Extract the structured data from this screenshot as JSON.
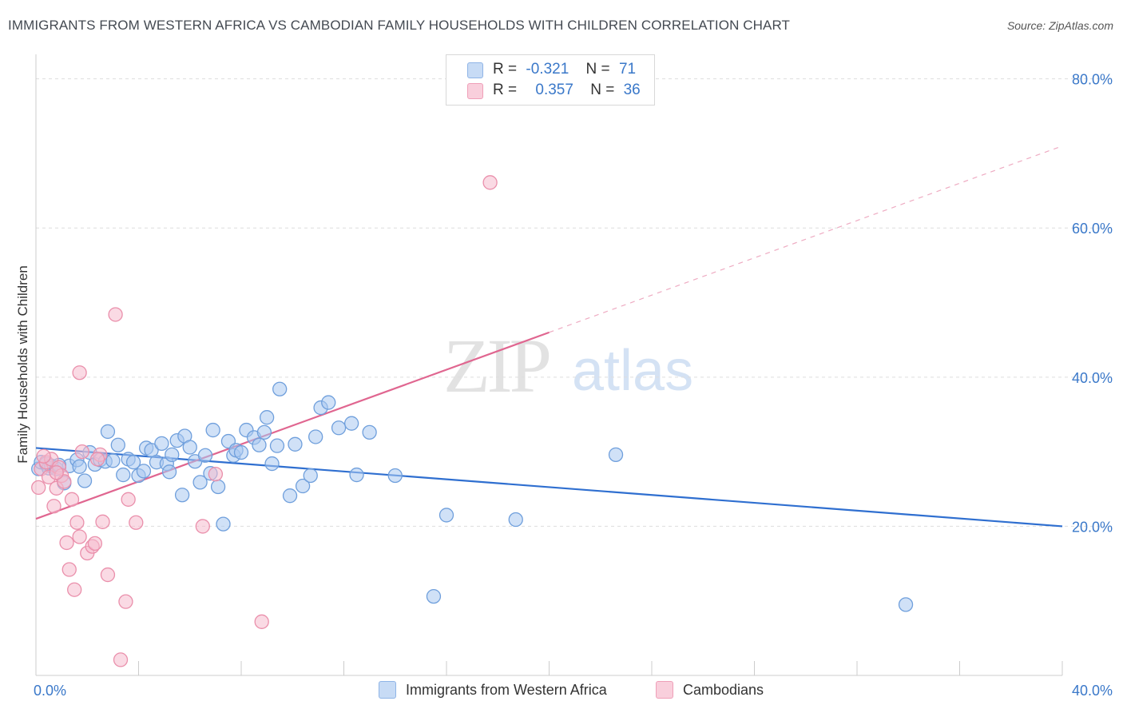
{
  "header": {
    "title": "IMMIGRANTS FROM WESTERN AFRICA VS CAMBODIAN FAMILY HOUSEHOLDS WITH CHILDREN CORRELATION CHART",
    "source": "Source: ZipAtlas.com"
  },
  "legend_top": {
    "rows": [
      {
        "r_label": "R =",
        "r_value": "-0.321",
        "n_label": "N =",
        "n_value": "71"
      },
      {
        "r_label": "R =",
        "r_value": "0.357",
        "n_label": "N =",
        "n_value": "36"
      }
    ]
  },
  "legend_bottom": {
    "items": [
      "Immigrants from Western Africa",
      "Cambodians"
    ]
  },
  "watermark": {
    "zip": "ZIP",
    "atlas": "atlas"
  },
  "colors": {
    "blue_fill": "#aac8f0",
    "blue_stroke": "#6f9fdc",
    "blue_line": "#2f6fd0",
    "pink_fill": "#f6bccd",
    "pink_stroke": "#ea8fab",
    "pink_line": "#e06690",
    "tick_text": "#3a78c9",
    "grid": "#dddddd"
  },
  "chart_data": {
    "type": "scatter",
    "title": "IMMIGRANTS FROM WESTERN AFRICA VS CAMBODIAN FAMILY HOUSEHOLDS WITH CHILDREN CORRELATION CHART",
    "xlabel": "",
    "ylabel": "Family Households with Children",
    "xlim": [
      0,
      40
    ],
    "ylim": [
      0,
      82
    ],
    "x_tick_labels": [
      "0.0%",
      "40.0%"
    ],
    "y_ticks": [
      20,
      40,
      60,
      80
    ],
    "y_tick_labels": [
      "20.0%",
      "40.0%",
      "60.0%",
      "80.0%"
    ],
    "grid": true,
    "legend_placement": "top-center",
    "series": [
      {
        "name": "Immigrants from Western Africa",
        "color": "#aac8f0",
        "points": [
          [
            0.1,
            27.7
          ],
          [
            0.2,
            28.6
          ],
          [
            0.4,
            28.4
          ],
          [
            0.5,
            27.8
          ],
          [
            0.6,
            28.1
          ],
          [
            0.8,
            27.7
          ],
          [
            1.1,
            25.8
          ],
          [
            1.3,
            28.1
          ],
          [
            1.6,
            28.9
          ],
          [
            1.7,
            28.0
          ],
          [
            1.9,
            26.1
          ],
          [
            2.1,
            29.9
          ],
          [
            2.3,
            28.3
          ],
          [
            2.5,
            28.9
          ],
          [
            2.7,
            28.7
          ],
          [
            2.8,
            32.7
          ],
          [
            3.0,
            28.8
          ],
          [
            3.2,
            30.9
          ],
          [
            3.4,
            26.9
          ],
          [
            3.6,
            29.0
          ],
          [
            3.8,
            28.6
          ],
          [
            4.0,
            26.8
          ],
          [
            4.2,
            27.4
          ],
          [
            4.3,
            30.5
          ],
          [
            4.5,
            30.2
          ],
          [
            4.7,
            28.6
          ],
          [
            4.9,
            31.1
          ],
          [
            5.1,
            28.4
          ],
          [
            5.2,
            27.3
          ],
          [
            5.3,
            29.6
          ],
          [
            5.5,
            31.5
          ],
          [
            5.7,
            24.2
          ],
          [
            5.8,
            32.1
          ],
          [
            6.0,
            30.6
          ],
          [
            6.2,
            28.7
          ],
          [
            6.4,
            25.9
          ],
          [
            6.6,
            29.5
          ],
          [
            6.8,
            27.1
          ],
          [
            6.9,
            32.9
          ],
          [
            7.1,
            25.3
          ],
          [
            7.3,
            20.3
          ],
          [
            7.5,
            31.4
          ],
          [
            7.7,
            29.5
          ],
          [
            7.8,
            30.2
          ],
          [
            8.0,
            29.9
          ],
          [
            8.2,
            32.9
          ],
          [
            8.5,
            31.9
          ],
          [
            8.7,
            30.9
          ],
          [
            8.9,
            32.6
          ],
          [
            9.0,
            34.6
          ],
          [
            9.2,
            28.4
          ],
          [
            9.4,
            30.8
          ],
          [
            9.5,
            38.4
          ],
          [
            9.9,
            24.1
          ],
          [
            10.1,
            31.0
          ],
          [
            10.4,
            25.4
          ],
          [
            10.7,
            26.8
          ],
          [
            10.9,
            32.0
          ],
          [
            11.1,
            35.9
          ],
          [
            11.4,
            36.6
          ],
          [
            11.8,
            33.2
          ],
          [
            12.3,
            33.8
          ],
          [
            12.5,
            26.9
          ],
          [
            13.0,
            32.6
          ],
          [
            14.0,
            26.8
          ],
          [
            15.5,
            10.6
          ],
          [
            16.0,
            21.5
          ],
          [
            18.7,
            20.9
          ],
          [
            22.6,
            29.6
          ],
          [
            33.9,
            9.5
          ],
          [
            0.9,
            28.2
          ]
        ]
      },
      {
        "name": "Cambodians",
        "color": "#f6bccd",
        "points": [
          [
            0.1,
            25.2
          ],
          [
            0.2,
            27.7
          ],
          [
            0.4,
            28.6
          ],
          [
            0.5,
            26.6
          ],
          [
            0.6,
            29.0
          ],
          [
            0.7,
            22.7
          ],
          [
            0.8,
            25.1
          ],
          [
            0.9,
            27.9
          ],
          [
            1.0,
            26.8
          ],
          [
            1.1,
            26.0
          ],
          [
            1.2,
            17.8
          ],
          [
            1.3,
            14.2
          ],
          [
            1.4,
            23.6
          ],
          [
            1.5,
            11.5
          ],
          [
            1.6,
            20.5
          ],
          [
            1.7,
            18.6
          ],
          [
            1.8,
            30.0
          ],
          [
            2.0,
            16.4
          ],
          [
            2.2,
            17.3
          ],
          [
            2.3,
            17.7
          ],
          [
            2.5,
            29.6
          ],
          [
            2.6,
            20.6
          ],
          [
            2.8,
            13.5
          ],
          [
            3.1,
            48.4
          ],
          [
            3.3,
            2.1
          ],
          [
            3.5,
            9.9
          ],
          [
            3.6,
            23.6
          ],
          [
            3.9,
            20.5
          ],
          [
            6.5,
            20.0
          ],
          [
            7.0,
            27.0
          ],
          [
            8.8,
            7.2
          ],
          [
            17.7,
            66.1
          ],
          [
            1.7,
            40.6
          ],
          [
            0.3,
            29.4
          ],
          [
            0.8,
            27.2
          ],
          [
            2.4,
            29.0
          ]
        ]
      }
    ],
    "trend_lines": [
      {
        "series": "Immigrants from Western Africa",
        "x": [
          0,
          40
        ],
        "y": [
          30.5,
          20.0
        ],
        "style": "solid"
      },
      {
        "series": "Cambodians",
        "x": [
          0,
          20
        ],
        "y": [
          21.0,
          46.0
        ],
        "style": "solid"
      },
      {
        "series": "Cambodians",
        "x": [
          20,
          40
        ],
        "y": [
          46.0,
          71.0
        ],
        "style": "dashed"
      }
    ]
  }
}
